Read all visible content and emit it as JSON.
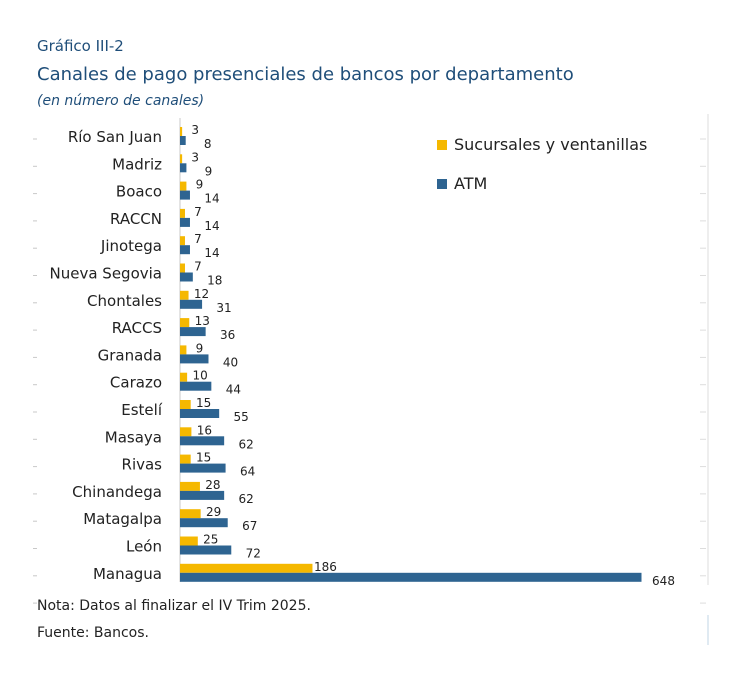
{
  "figure_label": "Gráfico III-2",
  "title": "Canales de pago presenciales de bancos por departamento",
  "subtitle": "(en número de canales)",
  "note": "Nota: Datos al finalizar el IV Trim 2025.",
  "source": "Fuente: Bancos.",
  "colors": {
    "sucursales": "#f5b800",
    "atm": "#2e6491",
    "title": "#1f4e79"
  },
  "chart_data": {
    "type": "bar",
    "orientation": "horizontal",
    "categories": [
      "Río San Juan",
      "Madriz",
      "Boaco",
      "RACCN",
      "Jinotega",
      "Nueva Segovia",
      "Chontales",
      "RACCS",
      "Granada",
      "Carazo",
      "Estelí",
      "Masaya",
      "Rivas",
      "Chinandega",
      "Matagalpa",
      "León",
      "Managua"
    ],
    "series": [
      {
        "name": "Sucursales y ventanillas",
        "values": [
          3,
          3,
          9,
          7,
          7,
          7,
          12,
          13,
          9,
          10,
          15,
          16,
          15,
          28,
          29,
          25,
          186
        ]
      },
      {
        "name": "ATM",
        "values": [
          8,
          9,
          14,
          14,
          14,
          18,
          31,
          36,
          40,
          44,
          55,
          62,
          64,
          62,
          67,
          72,
          648
        ]
      }
    ],
    "xlim": [
      0,
      650
    ],
    "legend": "top-right",
    "grid": false
  }
}
